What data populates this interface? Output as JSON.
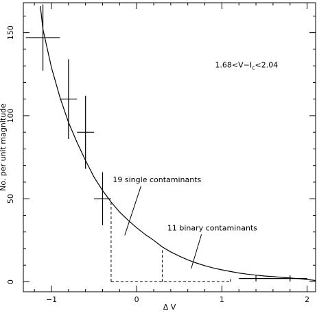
{
  "chart_data": {
    "type": "scatter",
    "xlabel": "Δ V",
    "ylabel": "No. per unit magnitude",
    "xlim": [
      -1.33,
      2.1
    ],
    "ylim": [
      -6,
      168
    ],
    "grid": false,
    "x_ticks": [
      -1,
      0,
      1,
      2
    ],
    "y_ticks": [
      0,
      50,
      100,
      150
    ],
    "x_tick_labels": [
      "−1",
      "0",
      "1",
      "2"
    ],
    "y_tick_labels": [
      "0",
      "50",
      "100",
      "150"
    ],
    "points": [
      {
        "x": -1.1,
        "y": 147,
        "xerr": 0.2,
        "yerr": [
          20,
          20
        ]
      },
      {
        "x": -0.8,
        "y": 110,
        "xerr": 0.1,
        "yerr": [
          24,
          24
        ]
      },
      {
        "x": -0.6,
        "y": 90,
        "xerr": 0.1,
        "yerr": [
          22,
          22
        ]
      },
      {
        "x": -0.4,
        "y": 50,
        "xerr": 0.1,
        "yerr": [
          16,
          16
        ]
      },
      {
        "x": 1.4,
        "y": 2,
        "xerr": 0.2,
        "yerr": [
          1.8,
          1.8
        ]
      },
      {
        "x": 1.8,
        "y": 2,
        "xerr": 0.2,
        "yerr": [
          1.8,
          1.8
        ]
      }
    ],
    "curve": {
      "x": [
        -1.13,
        -1.1,
        -1.0,
        -0.9,
        -0.8,
        -0.7,
        -0.6,
        -0.5,
        -0.4,
        -0.3,
        -0.2,
        -0.1,
        0.0,
        0.1,
        0.2,
        0.3,
        0.4,
        0.5,
        0.6,
        0.7,
        0.8,
        0.9,
        1.0,
        1.1,
        1.2,
        1.3,
        1.4,
        1.5,
        1.6,
        1.7,
        1.8,
        1.9,
        2.0,
        2.1
      ],
      "y": [
        166,
        152,
        129,
        111,
        96,
        84,
        73,
        63,
        55,
        48,
        42,
        37,
        32.5,
        28.5,
        25,
        21,
        18,
        15.5,
        13.2,
        11.3,
        9.7,
        8.3,
        7.2,
        6.2,
        5.3,
        4.6,
        4.0,
        3.5,
        3.1,
        2.7,
        2.3,
        1.9,
        1.4,
        0.8
      ]
    },
    "contaminant_regions": {
      "single": {
        "x_range": [
          -0.3,
          0.3
        ],
        "y_left": 48,
        "y_right": 19
      },
      "binary": {
        "x_range": [
          0.3,
          1.1
        ],
        "y_left": 21,
        "y_right": 0
      }
    },
    "annotations": [
      {
        "text_parts": [
          "1.68<V−I",
          "c",
          "<2.04"
        ],
        "x": 0.92,
        "y": 129
      },
      {
        "text": "19 single contaminants",
        "x": -0.28,
        "y": 60,
        "arrow_to": [
          -0.14,
          28
        ]
      },
      {
        "text": "11 binary contaminants",
        "x": 0.36,
        "y": 31,
        "arrow_to": [
          0.64,
          8
        ]
      }
    ]
  }
}
